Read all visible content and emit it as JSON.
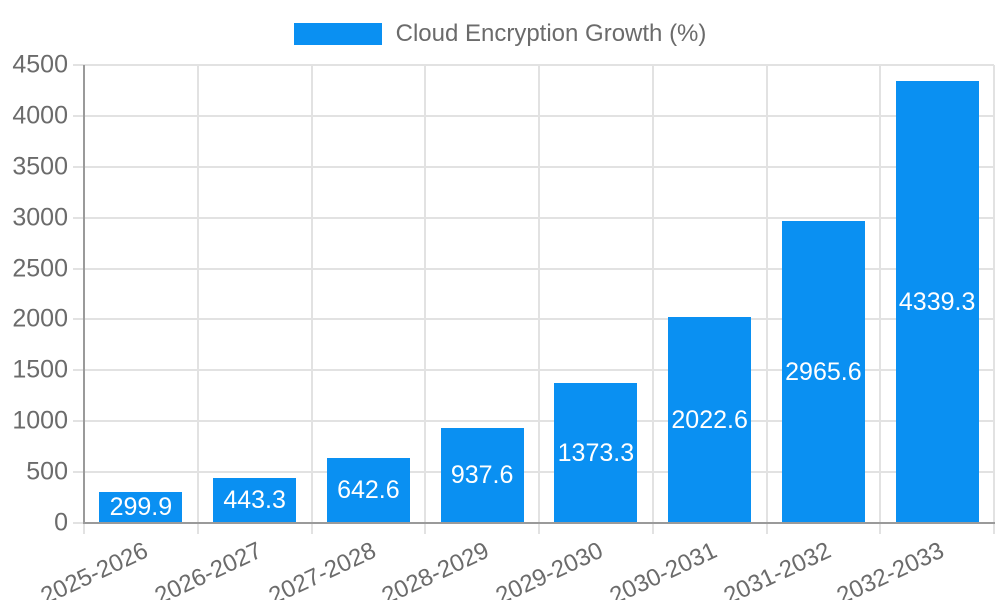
{
  "legend": {
    "label": "Cloud Encryption Growth (%)"
  },
  "colors": {
    "bar": "#0a90f2",
    "grid": "#e2e2e2",
    "axis": "#9a9a9a",
    "tick_label": "#6b6b6b",
    "legend_label": "#6b6b6b",
    "value_label": "#ffffff",
    "background": "#ffffff"
  },
  "chart_data": {
    "type": "bar",
    "title": "Cloud Encryption Growth (%)",
    "series_name": "Cloud Encryption Growth (%)",
    "categories": [
      "2025-2026",
      "2026-2027",
      "2027-2028",
      "2028-2029",
      "2029-2030",
      "2030-2031",
      "2031-2032",
      "2032-2033"
    ],
    "values": [
      299.9,
      443.3,
      642.6,
      937.6,
      1373.3,
      2022.6,
      2965.6,
      4339.3
    ],
    "value_labels": [
      "299.9",
      "443.3",
      "642.6",
      "937.6",
      "1373.3",
      "2022.6",
      "2965.6",
      "4339.3"
    ],
    "xlabel": "",
    "ylabel": "",
    "ylim": [
      0,
      4500
    ],
    "y_ticks": [
      0,
      500,
      1000,
      1500,
      2000,
      2500,
      3000,
      3500,
      4000,
      4500
    ],
    "grid": true,
    "legend_position": "top",
    "value_label_position": "inside-center",
    "x_label_rotation_deg": -25
  }
}
